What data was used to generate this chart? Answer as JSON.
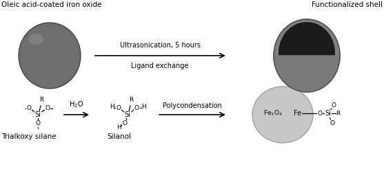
{
  "figsize": [
    5.57,
    2.49
  ],
  "dpi": 100,
  "bg_color": "#ffffff",
  "top_left_label": "Oleic acid-coated iron oxide",
  "top_right_label": "Functionalized shell",
  "arrow1_label_top": "Ultrasonication, 5 hours",
  "arrow1_label_bot": "Ligand exchange",
  "arrow2_label": "H$_2$O",
  "arrow3_label": "Polycondensation",
  "bottom_left_label": "Trialkoxy silane",
  "bottom_mid_label": "Silanol",
  "sphere_color": "#6e6e6e",
  "sphere_edge": "#3a3a3a",
  "func_outer_color": "#808080",
  "func_outer_edge": "#505050",
  "func_inner_color": "#1a1a1a",
  "func_bottom_color": "#7a7a7a",
  "silica_color": "#c8c8c8",
  "silica_edge": "#999999",
  "text_color": "#000000",
  "font_size": 7.0,
  "label_font_size": 7.5
}
